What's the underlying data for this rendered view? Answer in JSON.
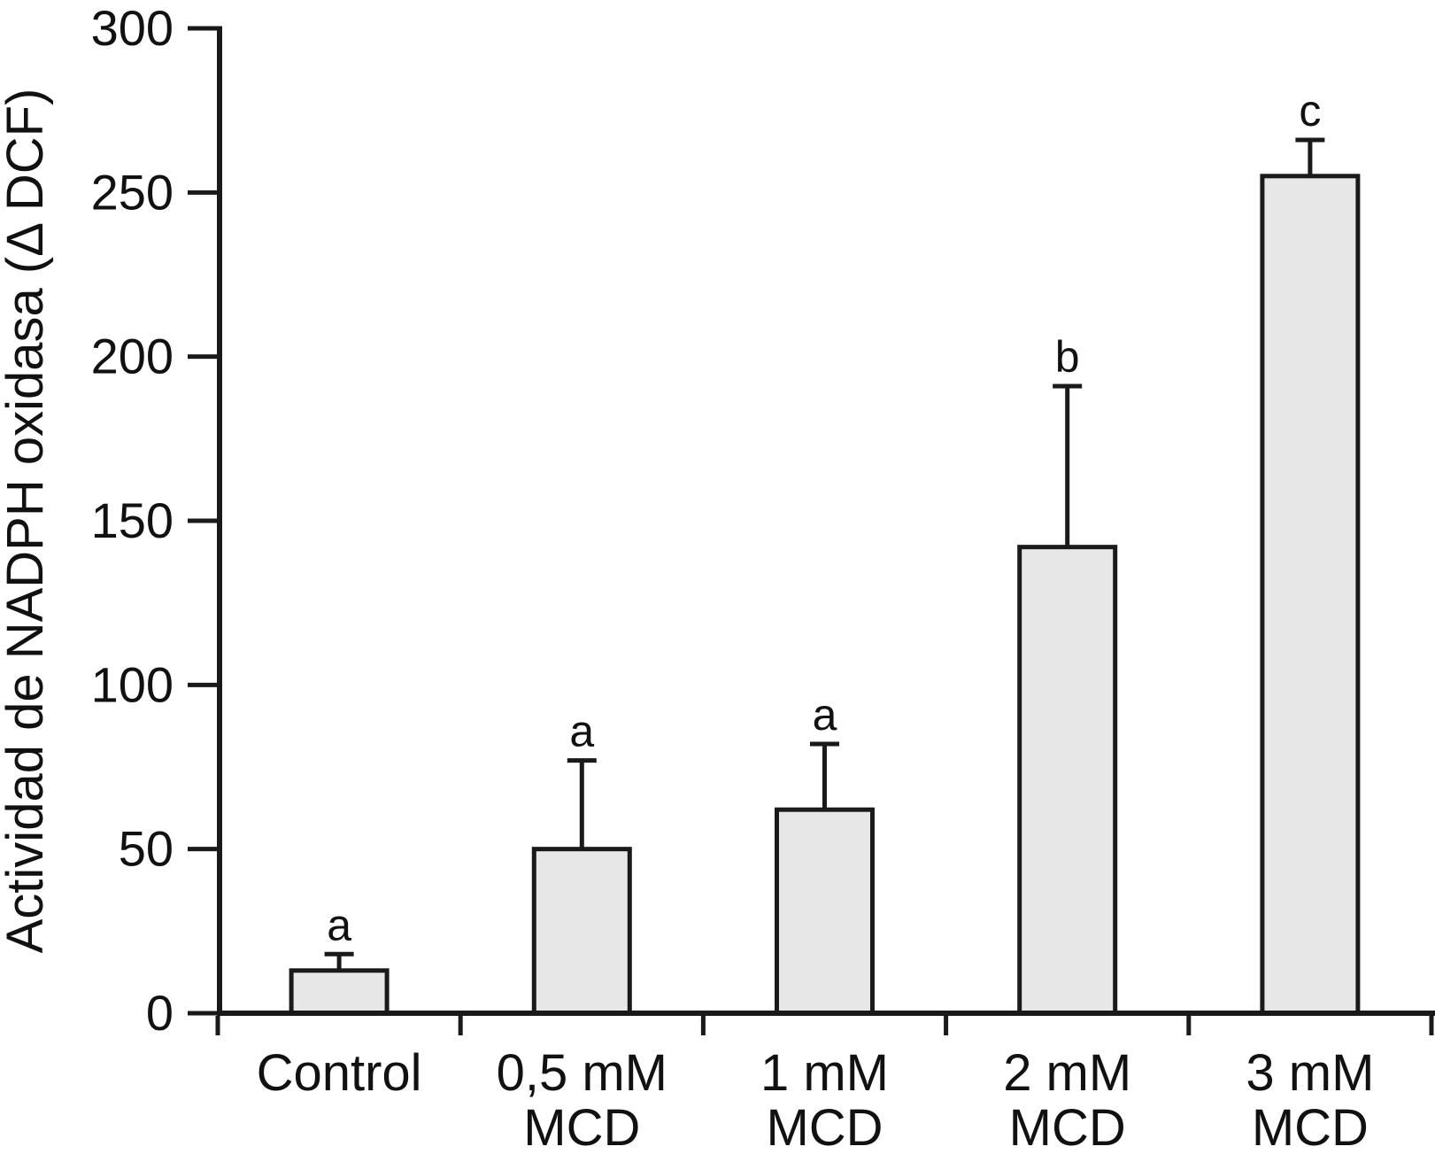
{
  "chart_data": {
    "type": "bar",
    "title": "",
    "xlabel": "",
    "ylabel": "Actividad de NADPH oxidasa (Δ DCF)",
    "categories": [
      "Control",
      "0,5 mM MCD",
      "1 mM MCD",
      "2 mM MCD",
      "3 mM MCD"
    ],
    "category_label_lines": [
      [
        "Control"
      ],
      [
        "0,5 mM",
        "MCD"
      ],
      [
        "1 mM",
        "MCD"
      ],
      [
        "2 mM",
        "MCD"
      ],
      [
        "3 mM",
        "MCD"
      ]
    ],
    "values": [
      13,
      50,
      62,
      142,
      255
    ],
    "error_up": [
      5,
      27,
      20,
      49,
      11
    ],
    "sig_letters": [
      "a",
      "a",
      "a",
      "b",
      "c"
    ],
    "ylim": [
      0,
      300
    ],
    "yticks": [
      0,
      50,
      100,
      150,
      200,
      250,
      300
    ],
    "grid": "off",
    "legend": "none",
    "bar_fill": "#e7e7e7",
    "bar_stroke": "#1a1a1a",
    "axis_color": "#1a1a1a",
    "background": "#ffffff"
  }
}
